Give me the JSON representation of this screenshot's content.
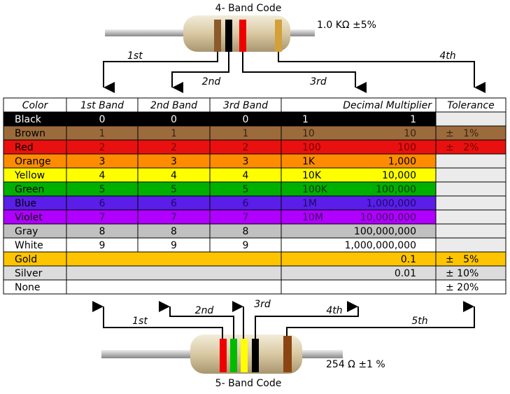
{
  "top": {
    "title": "4- Band Code",
    "value": "1.0 KΩ  ±5%",
    "labels": [
      "1st",
      "2nd",
      "3rd",
      "4th"
    ]
  },
  "bottom": {
    "title": "5- Band Code",
    "value": "254 Ω  ±1 %",
    "labels": [
      "1st",
      "2nd",
      "3rd",
      "4th",
      "5th"
    ]
  },
  "table": {
    "headers": [
      "Color",
      "1st Band",
      "2nd Band",
      "3rd Band",
      "Decimal Multiplier",
      "Tolerance"
    ],
    "rows": [
      {
        "color": "Black",
        "bg": "#000000",
        "text": "#ffffff",
        "bands": [
          "0",
          "0",
          "0"
        ],
        "mult_short": "1",
        "mult": "1"
      },
      {
        "color": "Brown",
        "bg": "#9c6b3c",
        "text": "#3a2410",
        "bands": [
          "1",
          "1",
          "1"
        ],
        "mult_short": "10",
        "mult": "10",
        "tolerance": "±   1%"
      },
      {
        "color": "Red",
        "bg": "#e8110f",
        "text": "#7a0000",
        "bands": [
          "2",
          "2",
          "2"
        ],
        "mult_short": "100",
        "mult": "100",
        "tolerance": "±   2%"
      },
      {
        "color": "Orange",
        "bg": "#ff8c00",
        "text": "#000000",
        "bands": [
          "3",
          "3",
          "3"
        ],
        "mult_short": "1K",
        "mult": "1,000"
      },
      {
        "color": "Yellow",
        "bg": "#ffff00",
        "text": "#000000",
        "bands": [
          "4",
          "4",
          "4"
        ],
        "mult_short": "10K",
        "mult": "10,000"
      },
      {
        "color": "Green",
        "bg": "#00b000",
        "text": "#003300",
        "bands": [
          "5",
          "5",
          "5"
        ],
        "mult_short": "100K",
        "mult": "100,000"
      },
      {
        "color": "Blue",
        "bg": "#5a1ee8",
        "text": "#1a0a66",
        "bands": [
          "6",
          "6",
          "6"
        ],
        "mult_short": "1M",
        "mult": "1,000,000"
      },
      {
        "color": "Violet",
        "bg": "#b000ff",
        "text": "#3d0060",
        "bands": [
          "7",
          "7",
          "7"
        ],
        "mult_short": "10M",
        "mult": "10,000,000"
      },
      {
        "color": "Gray",
        "bg": "#c0c0c0",
        "text": "#000000",
        "bands": [
          "8",
          "8",
          "8"
        ],
        "mult": "100,000,000"
      },
      {
        "color": "White",
        "bg": "#ffffff",
        "text": "#000000",
        "bands": [
          "9",
          "9",
          "9"
        ],
        "mult": "1,000,000,000"
      },
      {
        "color": "Gold",
        "bg": "#ffc400",
        "text": "#000000",
        "mult": "0.1",
        "tolerance": "±   5%"
      },
      {
        "color": "Silver",
        "bg": "#dcdcdc",
        "text": "#000000",
        "mult": "0.01",
        "tolerance": "± 10%"
      },
      {
        "color": "None",
        "bg": "#ffffff",
        "text": "#000000",
        "tolerance": "± 20%"
      }
    ]
  }
}
